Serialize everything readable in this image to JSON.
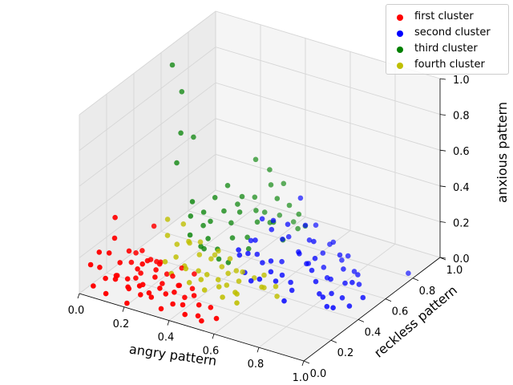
{
  "chart_data": {
    "type": "scatter",
    "projection": "3d",
    "title": "",
    "xlabel": "angry pattern",
    "ylabel": "reckless pattern",
    "zlabel": "anxious pattern",
    "xlim": [
      0,
      1
    ],
    "ylim": [
      0,
      1
    ],
    "zlim": [
      0,
      1
    ],
    "xticks": [
      "0.0",
      "0.2",
      "0.4",
      "0.6",
      "0.8",
      "1.0"
    ],
    "yticks": [
      "0.0",
      "0.2",
      "0.4",
      "0.6",
      "0.8",
      "1.0"
    ],
    "zticks": [
      "0.0",
      "0.2",
      "0.4",
      "0.6",
      "0.8",
      "1.0"
    ],
    "grid": true,
    "legend_position": "top-right",
    "series": [
      {
        "name": "first cluster",
        "color": "#ff0000",
        "points": [
          [
            0.02,
            0.05,
            0.14
          ],
          [
            0.03,
            0.1,
            0.1
          ],
          [
            0.05,
            0.02,
            0.05
          ],
          [
            0.06,
            0.12,
            0.18
          ],
          [
            0.08,
            0.06,
            0.08
          ],
          [
            0.09,
            0.15,
            0.12
          ],
          [
            0.1,
            0.03,
            0.02
          ],
          [
            0.1,
            0.2,
            0.16
          ],
          [
            0.12,
            0.08,
            0.1
          ],
          [
            0.13,
            0.14,
            0.05
          ],
          [
            0.14,
            0.04,
            0.13
          ],
          [
            0.15,
            0.18,
            0.09
          ],
          [
            0.16,
            0.1,
            0.03
          ],
          [
            0.17,
            0.22,
            0.12
          ],
          [
            0.18,
            0.06,
            0.07
          ],
          [
            0.19,
            0.15,
            0.15
          ],
          [
            0.2,
            0.02,
            0.01
          ],
          [
            0.21,
            0.12,
            0.06
          ],
          [
            0.22,
            0.2,
            0.1
          ],
          [
            0.23,
            0.07,
            0.04
          ],
          [
            0.24,
            0.16,
            0.09
          ],
          [
            0.25,
            0.03,
            0.12
          ],
          [
            0.26,
            0.1,
            0.02
          ],
          [
            0.27,
            0.24,
            0.06
          ],
          [
            0.28,
            0.05,
            0.08
          ],
          [
            0.3,
            0.14,
            0.03
          ],
          [
            0.31,
            0.08,
            0.1
          ],
          [
            0.32,
            0.2,
            0.05
          ],
          [
            0.34,
            0.04,
            0.02
          ],
          [
            0.35,
            0.12,
            0.07
          ],
          [
            0.36,
            0.18,
            0.01
          ],
          [
            0.38,
            0.06,
            0.05
          ],
          [
            0.4,
            0.1,
            0.03
          ],
          [
            0.42,
            0.15,
            0.06
          ],
          [
            0.44,
            0.05,
            0.02
          ],
          [
            0.46,
            0.12,
            0.04
          ],
          [
            0.48,
            0.08,
            0.01
          ],
          [
            0.5,
            0.14,
            0.03
          ],
          [
            0.52,
            0.04,
            0.02
          ],
          [
            0.55,
            0.1,
            0.01
          ],
          [
            0.07,
            0.3,
            0.08
          ],
          [
            0.11,
            0.28,
            0.12
          ],
          [
            0.15,
            0.32,
            0.05
          ],
          [
            0.2,
            0.26,
            0.09
          ],
          [
            0.25,
            0.34,
            0.04
          ],
          [
            0.05,
            0.18,
            0.34
          ],
          [
            0.12,
            0.35,
            0.22
          ],
          [
            0.08,
            0.25,
            0.06
          ],
          [
            0.14,
            0.22,
            0.04
          ],
          [
            0.18,
            0.3,
            0.07
          ],
          [
            0.22,
            0.28,
            0.03
          ],
          [
            0.26,
            0.18,
            0.05
          ],
          [
            0.3,
            0.24,
            0.02
          ],
          [
            0.33,
            0.3,
            0.06
          ],
          [
            0.37,
            0.22,
            0.04
          ],
          [
            0.04,
            0.08,
            0.2
          ],
          [
            0.06,
            0.16,
            0.24
          ],
          [
            0.1,
            0.1,
            0.06
          ],
          [
            0.13,
            0.2,
            0.02
          ],
          [
            0.16,
            0.26,
            0.1
          ]
        ]
      },
      {
        "name": "second cluster",
        "color": "#0000ff",
        "points": [
          [
            0.4,
            0.6,
            0.1
          ],
          [
            0.42,
            0.65,
            0.2
          ],
          [
            0.45,
            0.55,
            0.15
          ],
          [
            0.48,
            0.7,
            0.08
          ],
          [
            0.5,
            0.6,
            0.25
          ],
          [
            0.52,
            0.68,
            0.12
          ],
          [
            0.55,
            0.58,
            0.05
          ],
          [
            0.57,
            0.72,
            0.18
          ],
          [
            0.6,
            0.62,
            0.1
          ],
          [
            0.62,
            0.66,
            0.02
          ],
          [
            0.64,
            0.56,
            0.14
          ],
          [
            0.66,
            0.7,
            0.07
          ],
          [
            0.68,
            0.6,
            0.2
          ],
          [
            0.7,
            0.64,
            0.04
          ],
          [
            0.72,
            0.52,
            0.1
          ],
          [
            0.74,
            0.6,
            0.02
          ],
          [
            0.76,
            0.66,
            0.12
          ],
          [
            0.78,
            0.56,
            0.05
          ],
          [
            0.8,
            0.62,
            0.08
          ],
          [
            0.82,
            0.5,
            0.02
          ],
          [
            0.85,
            0.55,
            0.06
          ],
          [
            0.88,
            0.48,
            0.03
          ],
          [
            0.9,
            0.52,
            0.1
          ],
          [
            0.93,
            0.45,
            0.02
          ],
          [
            0.96,
            0.5,
            0.05
          ],
          [
            0.98,
            0.8,
            0.02
          ],
          [
            0.7,
            0.35,
            0.02
          ],
          [
            0.58,
            0.45,
            0.08
          ],
          [
            0.6,
            0.5,
            0.04
          ],
          [
            0.62,
            0.42,
            0.06
          ],
          [
            0.65,
            0.48,
            0.03
          ],
          [
            0.68,
            0.44,
            0.02
          ],
          [
            0.55,
            0.5,
            0.1
          ],
          [
            0.5,
            0.52,
            0.06
          ],
          [
            0.46,
            0.48,
            0.12
          ],
          [
            0.44,
            0.58,
            0.05
          ],
          [
            0.53,
            0.75,
            0.3
          ],
          [
            0.58,
            0.78,
            0.15
          ],
          [
            0.63,
            0.8,
            0.05
          ],
          [
            0.67,
            0.76,
            0.1
          ],
          [
            0.72,
            0.74,
            0.03
          ],
          [
            0.76,
            0.72,
            0.08
          ],
          [
            0.8,
            0.7,
            0.02
          ],
          [
            0.84,
            0.66,
            0.04
          ],
          [
            0.87,
            0.62,
            0.02
          ],
          [
            0.48,
            0.62,
            0.18
          ],
          [
            0.54,
            0.64,
            0.22
          ],
          [
            0.6,
            0.7,
            0.12
          ],
          [
            0.66,
            0.58,
            0.08
          ],
          [
            0.71,
            0.56,
            0.14
          ],
          [
            0.75,
            0.5,
            0.06
          ],
          [
            0.79,
            0.46,
            0.03
          ],
          [
            0.83,
            0.42,
            0.05
          ],
          [
            0.86,
            0.4,
            0.02
          ],
          [
            0.9,
            0.38,
            0.04
          ],
          [
            0.41,
            0.5,
            0.08
          ],
          [
            0.43,
            0.46,
            0.14
          ],
          [
            0.47,
            0.44,
            0.04
          ],
          [
            0.51,
            0.42,
            0.02
          ],
          [
            0.56,
            0.4,
            0.06
          ]
        ]
      },
      {
        "name": "third cluster",
        "color": "#008000",
        "points": [
          [
            0.05,
            0.6,
            0.95
          ],
          [
            0.08,
            0.62,
            0.8
          ],
          [
            0.1,
            0.58,
            0.6
          ],
          [
            0.12,
            0.64,
            0.55
          ],
          [
            0.1,
            0.55,
            0.45
          ],
          [
            0.3,
            0.8,
            0.4
          ],
          [
            0.35,
            0.82,
            0.35
          ],
          [
            0.38,
            0.78,
            0.3
          ],
          [
            0.4,
            0.84,
            0.28
          ],
          [
            0.42,
            0.76,
            0.25
          ],
          [
            0.3,
            0.7,
            0.25
          ],
          [
            0.32,
            0.65,
            0.2
          ],
          [
            0.35,
            0.72,
            0.18
          ],
          [
            0.38,
            0.68,
            0.15
          ],
          [
            0.4,
            0.74,
            0.12
          ],
          [
            0.28,
            0.6,
            0.22
          ],
          [
            0.3,
            0.62,
            0.15
          ],
          [
            0.33,
            0.58,
            0.1
          ],
          [
            0.36,
            0.64,
            0.08
          ],
          [
            0.39,
            0.6,
            0.05
          ],
          [
            0.25,
            0.55,
            0.18
          ],
          [
            0.27,
            0.5,
            0.12
          ],
          [
            0.3,
            0.52,
            0.06
          ],
          [
            0.33,
            0.48,
            0.04
          ],
          [
            0.36,
            0.5,
            0.02
          ],
          [
            0.45,
            0.8,
            0.2
          ],
          [
            0.48,
            0.82,
            0.15
          ],
          [
            0.5,
            0.78,
            0.1
          ],
          [
            0.44,
            0.7,
            0.16
          ],
          [
            0.47,
            0.72,
            0.06
          ],
          [
            0.2,
            0.5,
            0.3
          ],
          [
            0.22,
            0.55,
            0.22
          ],
          [
            0.24,
            0.6,
            0.28
          ],
          [
            0.26,
            0.66,
            0.32
          ],
          [
            0.28,
            0.7,
            0.2
          ],
          [
            0.32,
            0.76,
            0.22
          ],
          [
            0.34,
            0.8,
            0.12
          ],
          [
            0.37,
            0.86,
            0.08
          ],
          [
            0.42,
            0.88,
            0.05
          ],
          [
            0.46,
            0.9,
            0.03
          ],
          [
            0.22,
            0.45,
            0.15
          ],
          [
            0.25,
            0.48,
            0.08
          ],
          [
            0.18,
            0.52,
            0.2
          ],
          [
            0.2,
            0.58,
            0.12
          ],
          [
            0.24,
            0.52,
            0.04
          ]
        ]
      },
      {
        "name": "fourth cluster",
        "color": "#bfbf00",
        "points": [
          [
            0.15,
            0.4,
            0.15
          ],
          [
            0.18,
            0.42,
            0.1
          ],
          [
            0.2,
            0.38,
            0.06
          ],
          [
            0.22,
            0.44,
            0.12
          ],
          [
            0.25,
            0.36,
            0.04
          ],
          [
            0.28,
            0.42,
            0.08
          ],
          [
            0.3,
            0.38,
            0.02
          ],
          [
            0.32,
            0.44,
            0.06
          ],
          [
            0.35,
            0.36,
            0.03
          ],
          [
            0.38,
            0.42,
            0.05
          ],
          [
            0.4,
            0.36,
            0.02
          ],
          [
            0.42,
            0.4,
            0.04
          ],
          [
            0.45,
            0.34,
            0.02
          ],
          [
            0.48,
            0.38,
            0.03
          ],
          [
            0.5,
            0.32,
            0.01
          ],
          [
            0.2,
            0.3,
            0.08
          ],
          [
            0.24,
            0.28,
            0.04
          ],
          [
            0.28,
            0.32,
            0.06
          ],
          [
            0.32,
            0.28,
            0.02
          ],
          [
            0.36,
            0.3,
            0.04
          ],
          [
            0.4,
            0.26,
            0.02
          ],
          [
            0.44,
            0.3,
            0.03
          ],
          [
            0.48,
            0.26,
            0.01
          ],
          [
            0.52,
            0.3,
            0.02
          ],
          [
            0.55,
            0.25,
            0.01
          ],
          [
            0.12,
            0.45,
            0.2
          ],
          [
            0.16,
            0.5,
            0.16
          ],
          [
            0.2,
            0.48,
            0.08
          ],
          [
            0.26,
            0.46,
            0.12
          ],
          [
            0.3,
            0.5,
            0.04
          ],
          [
            0.55,
            0.45,
            0.05
          ],
          [
            0.58,
            0.4,
            0.02
          ],
          [
            0.6,
            0.35,
            0.06
          ],
          [
            0.62,
            0.42,
            0.03
          ],
          [
            0.65,
            0.38,
            0.01
          ],
          [
            0.34,
            0.46,
            0.1
          ],
          [
            0.38,
            0.48,
            0.06
          ],
          [
            0.42,
            0.46,
            0.02
          ],
          [
            0.46,
            0.44,
            0.04
          ],
          [
            0.5,
            0.46,
            0.01
          ]
        ]
      }
    ]
  }
}
